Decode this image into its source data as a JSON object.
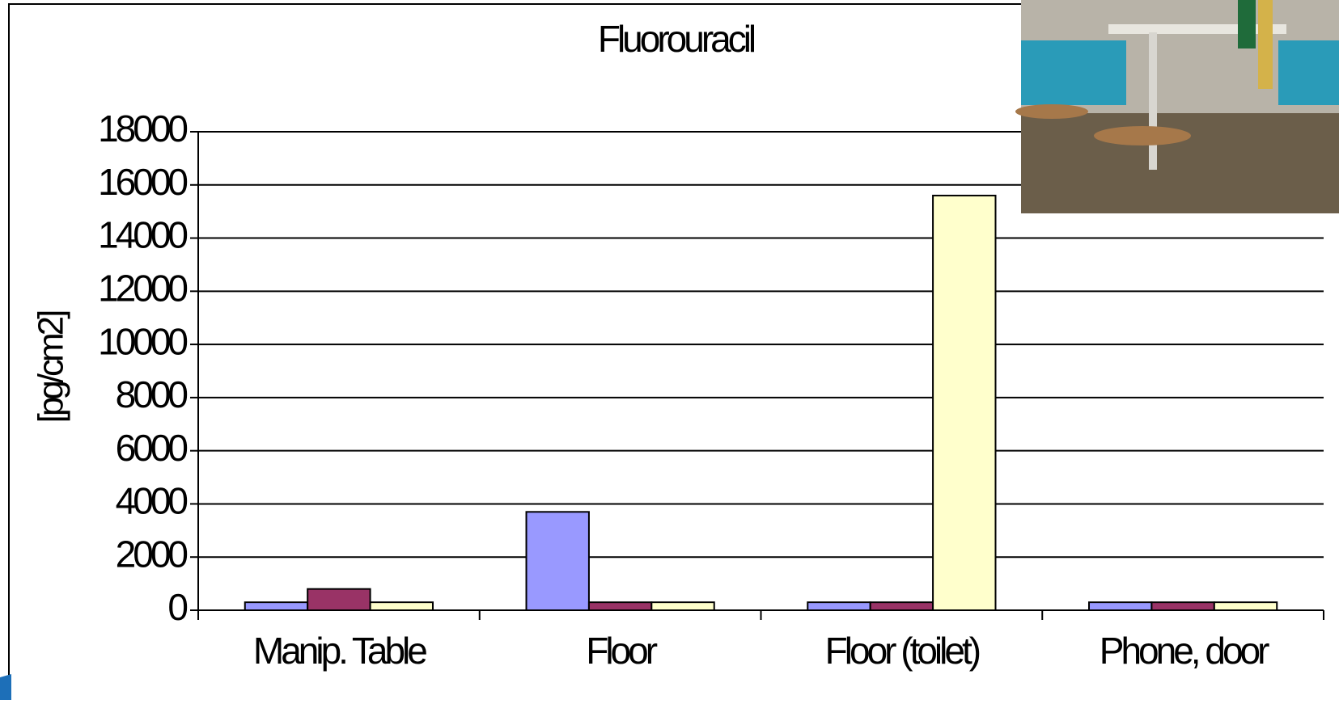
{
  "chart_data": {
    "type": "bar",
    "title": "Fluorouracil",
    "y_label": "[pg/cm2]",
    "categories": [
      "Manip. Table",
      "Floor",
      "Floor (toilet)",
      "Phone, door"
    ],
    "series": [
      {
        "color": "#9999ff",
        "values": [
          300,
          3700,
          300,
          300
        ]
      },
      {
        "color": "#993366",
        "values": [
          800,
          300,
          300,
          300
        ]
      },
      {
        "color": "#ffffcc",
        "values": [
          300,
          300,
          15600,
          300
        ]
      }
    ],
    "ylim": [
      0,
      18000
    ],
    "yticks": [
      0,
      2000,
      4000,
      6000,
      8000,
      10000,
      12000,
      14000,
      16000,
      18000
    ],
    "grid": true
  }
}
